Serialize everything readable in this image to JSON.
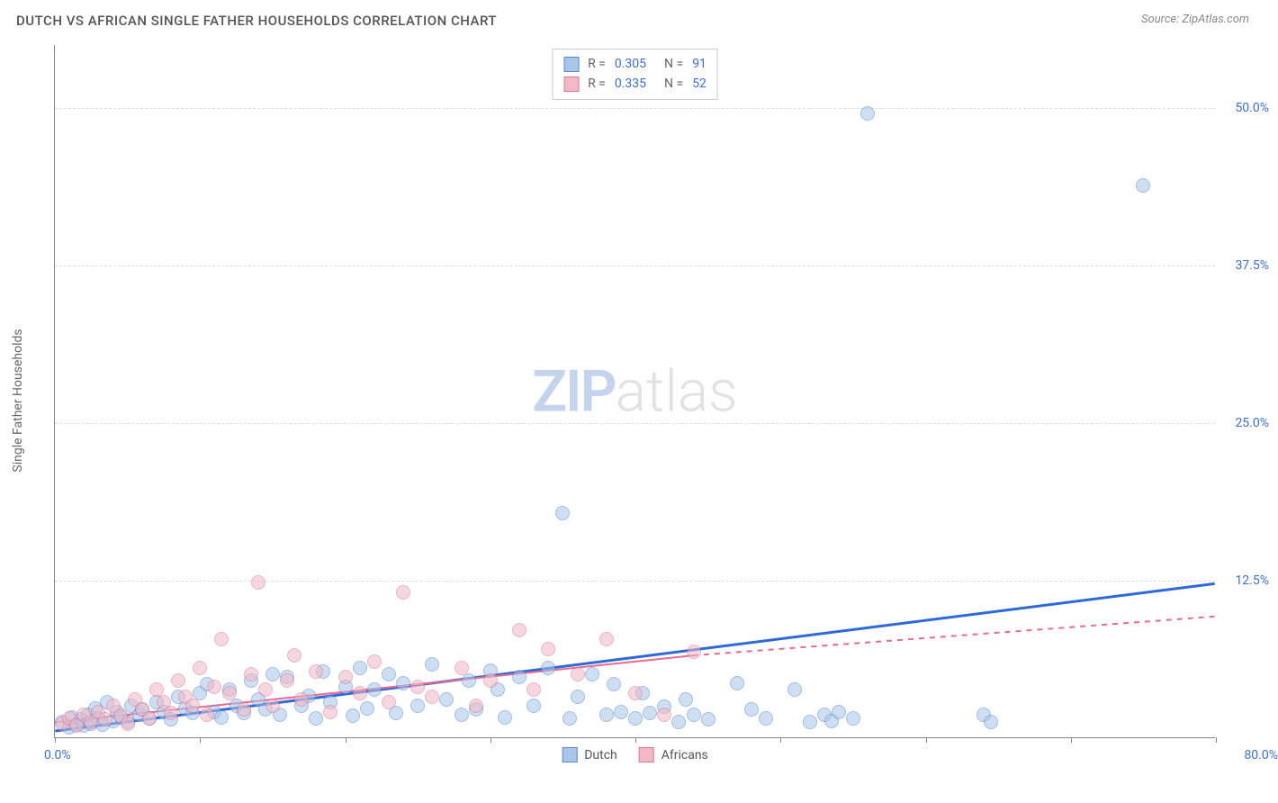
{
  "title": "DUTCH VS AFRICAN SINGLE FATHER HOUSEHOLDS CORRELATION CHART",
  "source": "Source: ZipAtlas.com",
  "y_axis_label": "Single Father Households",
  "watermark": {
    "zip": "ZIP",
    "atlas": "atlas"
  },
  "chart": {
    "type": "scatter",
    "background_color": "#ffffff",
    "grid_color": "#dddddd",
    "axis_color": "#888888",
    "xlim": [
      0,
      80
    ],
    "ylim": [
      0,
      55
    ],
    "x_ticks": [
      0,
      10,
      20,
      30,
      40,
      50,
      60,
      70,
      80
    ],
    "x_label_min": "0.0%",
    "x_label_max": "80.0%",
    "x_label_color": "#3f6fc9",
    "y_ticks": [
      {
        "value": 12.5,
        "label": "12.5%"
      },
      {
        "value": 25.0,
        "label": "25.0%"
      },
      {
        "value": 37.5,
        "label": "37.5%"
      },
      {
        "value": 50.0,
        "label": "50.0%"
      }
    ],
    "y_tick_color": "#3f6fc9",
    "series": [
      {
        "name": "Dutch",
        "r_value": "0.305",
        "n_value": "91",
        "fill_color": "#a9c5ea",
        "stroke_color": "#5a88c8",
        "fill_opacity": 0.55,
        "marker_radius": 8,
        "trend": {
          "x1": 0,
          "y1": 0.5,
          "x2": 80,
          "y2": 12.2,
          "color": "#2f68d8",
          "width": 3,
          "dash_after_x": 80
        },
        "points": [
          [
            0.5,
            1.2
          ],
          [
            1,
            0.8
          ],
          [
            1.2,
            1.6
          ],
          [
            1.5,
            1.0
          ],
          [
            1.8,
            1.4
          ],
          [
            2,
            0.9
          ],
          [
            2.3,
            1.8
          ],
          [
            2.5,
            1.1
          ],
          [
            2.8,
            2.3
          ],
          [
            3,
            1.5
          ],
          [
            3.3,
            1.0
          ],
          [
            3.6,
            2.8
          ],
          [
            4,
            1.3
          ],
          [
            4.3,
            2.0
          ],
          [
            4.6,
            1.6
          ],
          [
            5,
            1.2
          ],
          [
            5.3,
            2.5
          ],
          [
            5.8,
            1.8
          ],
          [
            6,
            2.2
          ],
          [
            6.5,
            1.5
          ],
          [
            7,
            2.8
          ],
          [
            7.5,
            2.0
          ],
          [
            8,
            1.4
          ],
          [
            8.5,
            3.2
          ],
          [
            9,
            2.3
          ],
          [
            9.5,
            1.9
          ],
          [
            10,
            3.5
          ],
          [
            10.5,
            4.2
          ],
          [
            11,
            2.0
          ],
          [
            11.5,
            1.6
          ],
          [
            12,
            3.8
          ],
          [
            12.5,
            2.5
          ],
          [
            13,
            1.9
          ],
          [
            13.5,
            4.5
          ],
          [
            14,
            3.0
          ],
          [
            14.5,
            2.2
          ],
          [
            15,
            5.0
          ],
          [
            15.5,
            1.8
          ],
          [
            16,
            4.8
          ],
          [
            17,
            2.5
          ],
          [
            17.5,
            3.3
          ],
          [
            18,
            1.5
          ],
          [
            18.5,
            5.2
          ],
          [
            19,
            2.8
          ],
          [
            20,
            4.0
          ],
          [
            20.5,
            1.7
          ],
          [
            21,
            5.5
          ],
          [
            21.5,
            2.3
          ],
          [
            22,
            3.8
          ],
          [
            23,
            5.0
          ],
          [
            23.5,
            1.9
          ],
          [
            24,
            4.3
          ],
          [
            25,
            2.5
          ],
          [
            26,
            5.8
          ],
          [
            27,
            3.0
          ],
          [
            28,
            1.8
          ],
          [
            28.5,
            4.5
          ],
          [
            29,
            2.2
          ],
          [
            30,
            5.3
          ],
          [
            30.5,
            3.8
          ],
          [
            31,
            1.6
          ],
          [
            32,
            4.8
          ],
          [
            33,
            2.5
          ],
          [
            34,
            5.5
          ],
          [
            35,
            17.8
          ],
          [
            35.5,
            1.5
          ],
          [
            36,
            3.2
          ],
          [
            37,
            5.0
          ],
          [
            38,
            1.8
          ],
          [
            38.5,
            4.2
          ],
          [
            39,
            2.0
          ],
          [
            40,
            1.5
          ],
          [
            40.5,
            3.5
          ],
          [
            41,
            1.9
          ],
          [
            42,
            2.4
          ],
          [
            43,
            1.2
          ],
          [
            43.5,
            3.0
          ],
          [
            44,
            1.8
          ],
          [
            45,
            1.4
          ],
          [
            47,
            4.3
          ],
          [
            48,
            2.2
          ],
          [
            49,
            1.5
          ],
          [
            51,
            3.8
          ],
          [
            52,
            1.2
          ],
          [
            53,
            1.8
          ],
          [
            53.5,
            1.3
          ],
          [
            54,
            2.0
          ],
          [
            55,
            1.5
          ],
          [
            56,
            49.5
          ],
          [
            64,
            1.8
          ],
          [
            64.5,
            1.2
          ],
          [
            75,
            43.8
          ]
        ]
      },
      {
        "name": "Africans",
        "r_value": "0.335",
        "n_value": "52",
        "fill_color": "#f2b8c5",
        "stroke_color": "#d97a93",
        "fill_opacity": 0.55,
        "marker_radius": 8,
        "trend": {
          "x1": 0,
          "y1": 1.2,
          "x2": 44,
          "y2": 6.5,
          "dash_to_x": 80,
          "dash_to_y": 9.6,
          "color": "#e86b8f",
          "width": 2
        },
        "points": [
          [
            0.5,
            1.1
          ],
          [
            1,
            1.5
          ],
          [
            1.5,
            0.9
          ],
          [
            2,
            1.8
          ],
          [
            2.5,
            1.2
          ],
          [
            3,
            2.0
          ],
          [
            3.5,
            1.4
          ],
          [
            4,
            2.5
          ],
          [
            4.5,
            1.7
          ],
          [
            5,
            1.1
          ],
          [
            5.5,
            3.0
          ],
          [
            6,
            2.2
          ],
          [
            6.5,
            1.5
          ],
          [
            7,
            3.8
          ],
          [
            7.5,
            2.8
          ],
          [
            8,
            1.9
          ],
          [
            8.5,
            4.5
          ],
          [
            9,
            3.2
          ],
          [
            9.5,
            2.5
          ],
          [
            10,
            5.5
          ],
          [
            10.5,
            1.8
          ],
          [
            11,
            4.0
          ],
          [
            11.5,
            7.8
          ],
          [
            12,
            3.5
          ],
          [
            13,
            2.2
          ],
          [
            13.5,
            5.0
          ],
          [
            14,
            12.3
          ],
          [
            14.5,
            3.8
          ],
          [
            15,
            2.5
          ],
          [
            16,
            4.5
          ],
          [
            16.5,
            6.5
          ],
          [
            17,
            3.0
          ],
          [
            18,
            5.2
          ],
          [
            19,
            2.0
          ],
          [
            20,
            4.8
          ],
          [
            21,
            3.5
          ],
          [
            22,
            6.0
          ],
          [
            23,
            2.8
          ],
          [
            24,
            11.5
          ],
          [
            25,
            4.0
          ],
          [
            26,
            3.2
          ],
          [
            28,
            5.5
          ],
          [
            29,
            2.5
          ],
          [
            30,
            4.5
          ],
          [
            32,
            8.5
          ],
          [
            33,
            3.8
          ],
          [
            34,
            7.0
          ],
          [
            36,
            5.0
          ],
          [
            38,
            7.8
          ],
          [
            40,
            3.5
          ],
          [
            42,
            1.8
          ],
          [
            44,
            6.8
          ]
        ]
      }
    ],
    "stats_value_color": "#3f6fc9",
    "title_fontsize": 15,
    "label_fontsize": 14
  },
  "legend": {
    "items": [
      {
        "label": "Dutch",
        "fill": "#a9c5ea",
        "stroke": "#5a88c8"
      },
      {
        "label": "Africans",
        "fill": "#f2b8c5",
        "stroke": "#d97a93"
      }
    ]
  }
}
